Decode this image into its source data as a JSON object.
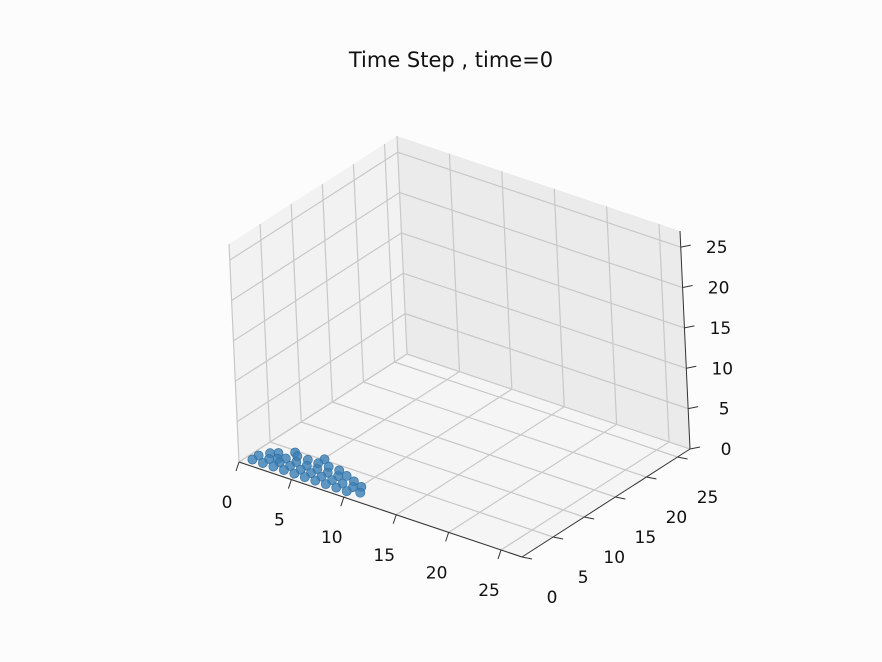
{
  "chart_data": {
    "type": "scatter3d",
    "title": "Time Step , time=0",
    "xlim": [
      0,
      27
    ],
    "ylim": [
      0,
      27
    ],
    "zlim": [
      0,
      27
    ],
    "x_ticks": [
      "0",
      "5",
      "10",
      "15",
      "20",
      "25"
    ],
    "y_ticks": [
      "0",
      "5",
      "10",
      "15",
      "20",
      "25"
    ],
    "z_ticks": [
      "0",
      "5",
      "10",
      "15",
      "20",
      "25"
    ],
    "grid": true,
    "marker_color": "#3b7fb5",
    "points": [
      {
        "x": 1,
        "y": 0.5,
        "z": 0.5
      },
      {
        "x": 1,
        "y": 1.5,
        "z": 0.5
      },
      {
        "x": 1.5,
        "y": 2.5,
        "z": 0.5
      },
      {
        "x": 2,
        "y": 0.5,
        "z": 0.5
      },
      {
        "x": 2,
        "y": 1.5,
        "z": 0.5
      },
      {
        "x": 2,
        "y": 3,
        "z": 0.5
      },
      {
        "x": 2.5,
        "y": 2,
        "z": 0.5
      },
      {
        "x": 3,
        "y": 0.5,
        "z": 0.5
      },
      {
        "x": 3,
        "y": 1.5,
        "z": 0.5
      },
      {
        "x": 3,
        "y": 2.5,
        "z": 0.5
      },
      {
        "x": 3.5,
        "y": 3.5,
        "z": 0.5
      },
      {
        "x": 4,
        "y": 0.5,
        "z": 0.5
      },
      {
        "x": 4,
        "y": 1.5,
        "z": 0.5
      },
      {
        "x": 4,
        "y": 2.5,
        "z": 0.5
      },
      {
        "x": 4.5,
        "y": 3.5,
        "z": 0.5
      },
      {
        "x": 5,
        "y": 0.5,
        "z": 0.5
      },
      {
        "x": 5,
        "y": 1.5,
        "z": 0.5
      },
      {
        "x": 5,
        "y": 2.5,
        "z": 0.5
      },
      {
        "x": 5.5,
        "y": 3.5,
        "z": 0.5
      },
      {
        "x": 6,
        "y": 0.5,
        "z": 0.5
      },
      {
        "x": 6,
        "y": 1.5,
        "z": 0.5
      },
      {
        "x": 6,
        "y": 2.5,
        "z": 0.5
      },
      {
        "x": 6.5,
        "y": 3.5,
        "z": 0.5
      },
      {
        "x": 7,
        "y": 0.5,
        "z": 0.5
      },
      {
        "x": 7,
        "y": 1.5,
        "z": 0.5
      },
      {
        "x": 7,
        "y": 2.5,
        "z": 0.5
      },
      {
        "x": 7.5,
        "y": 3.5,
        "z": 0.5
      },
      {
        "x": 8,
        "y": 0.5,
        "z": 0.5
      },
      {
        "x": 8,
        "y": 1.5,
        "z": 0.5
      },
      {
        "x": 8,
        "y": 2.5,
        "z": 0.5
      },
      {
        "x": 8.5,
        "y": 3,
        "z": 0.5
      },
      {
        "x": 9,
        "y": 0.5,
        "z": 0.5
      },
      {
        "x": 9,
        "y": 1.5,
        "z": 0.5
      },
      {
        "x": 9.5,
        "y": 2.5,
        "z": 0.5
      },
      {
        "x": 10,
        "y": 1.5,
        "z": 0.5
      },
      {
        "x": 10,
        "y": 0.5,
        "z": 0.5
      },
      {
        "x": 10.5,
        "y": 2,
        "z": 0.5
      },
      {
        "x": 11,
        "y": 1,
        "z": 0.5
      },
      {
        "x": 5.5,
        "y": 4.5,
        "z": 0.5
      },
      {
        "x": 3,
        "y": 4,
        "z": 0.5
      }
    ]
  }
}
